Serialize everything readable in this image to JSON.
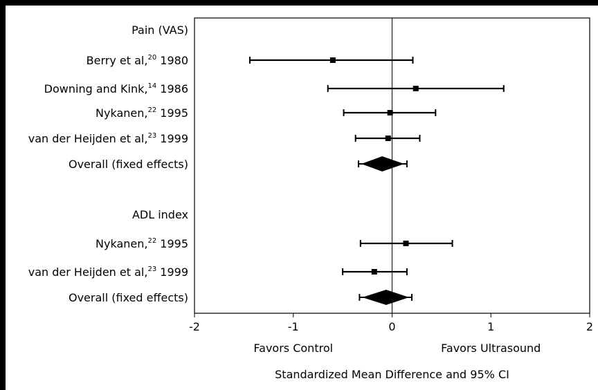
{
  "chart_data": {
    "type": "forest",
    "title": "",
    "xlabel": "Standardized Mean Difference and 95% CI",
    "xlim": [
      -2,
      2
    ],
    "xticks": [
      -2,
      -1,
      0,
      1,
      2
    ],
    "xtick_labels": [
      "-2",
      "-1",
      "0",
      "1",
      "2"
    ],
    "favors_left": "Favors Control",
    "favors_right": "Favors  Ultrasound",
    "rows": [
      {
        "kind": "header",
        "label": "Pain (VAS)"
      },
      {
        "kind": "study",
        "label": "Berry et al,",
        "ref": "20",
        "year": " 1980",
        "estimate": -0.6,
        "ci": [
          -1.44,
          0.21
        ]
      },
      {
        "kind": "study",
        "label": "Downing and Kink,",
        "ref": "14",
        "year": " 1986",
        "estimate": 0.24,
        "ci": [
          -0.65,
          1.13
        ]
      },
      {
        "kind": "study",
        "label": "Nykanen,",
        "ref": "22",
        "year": " 1995",
        "estimate": -0.02,
        "ci": [
          -0.49,
          0.44
        ]
      },
      {
        "kind": "study",
        "label": "van der Heijden et al,",
        "ref": "23",
        "year": " 1999",
        "estimate": -0.04,
        "ci": [
          -0.37,
          0.28
        ]
      },
      {
        "kind": "overall",
        "label": "Overall (fixed effects)",
        "estimate": -0.1,
        "ci": [
          -0.34,
          0.15
        ]
      },
      {
        "kind": "header",
        "label": "ADL index"
      },
      {
        "kind": "study",
        "label": "Nykanen,",
        "ref": "22",
        "year": " 1995",
        "estimate": 0.14,
        "ci": [
          -0.32,
          0.61
        ]
      },
      {
        "kind": "study",
        "label": "van der Heijden et al,",
        "ref": "23",
        "year": " 1999",
        "estimate": -0.18,
        "ci": [
          -0.5,
          0.15
        ]
      },
      {
        "kind": "overall",
        "label": "Overall (fixed effects)",
        "estimate": -0.06,
        "ci": [
          -0.33,
          0.2
        ]
      }
    ]
  }
}
